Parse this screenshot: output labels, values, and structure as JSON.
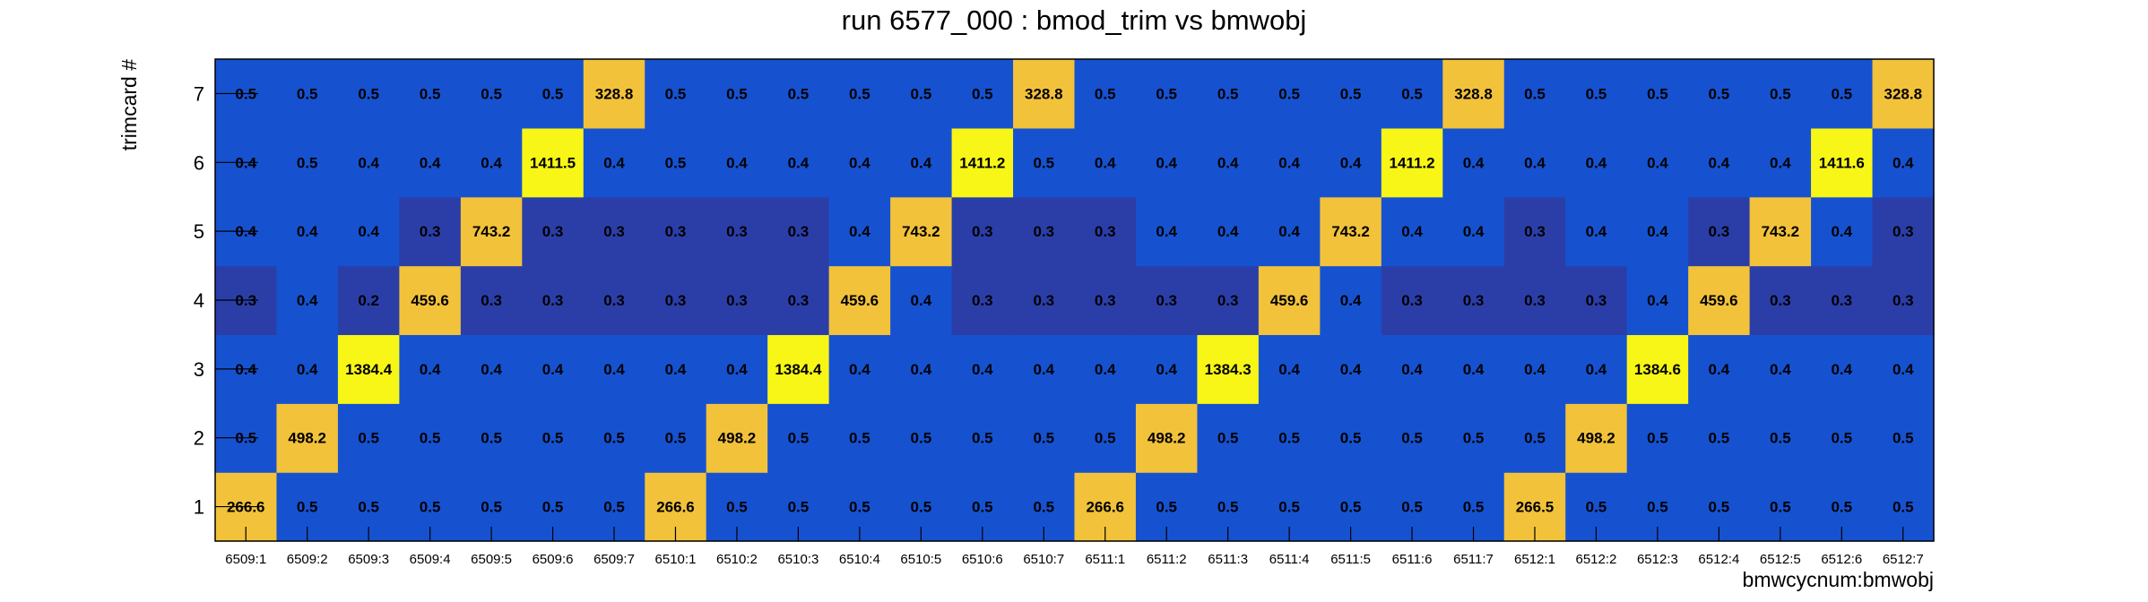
{
  "chart_data": {
    "type": "heatmap",
    "title": "run 6577_000 : bmod_trim vs bmwobj",
    "xlabel": "bmwcycnum:bmwobj",
    "ylabel": "trimcard #",
    "x_categories": [
      "6509:1",
      "6509:2",
      "6509:3",
      "6509:4",
      "6509:5",
      "6509:6",
      "6509:7",
      "6510:1",
      "6510:2",
      "6510:3",
      "6510:4",
      "6510:5",
      "6510:6",
      "6510:7",
      "6511:1",
      "6511:2",
      "6511:3",
      "6511:4",
      "6511:5",
      "6511:6",
      "6511:7",
      "6512:1",
      "6512:2",
      "6512:3",
      "6512:4",
      "6512:5",
      "6512:6",
      "6512:7"
    ],
    "y_categories": [
      "1",
      "2",
      "3",
      "4",
      "5",
      "6",
      "7"
    ],
    "values": [
      [
        "266.6",
        "0.5",
        "0.5",
        "0.5",
        "0.5",
        "0.5",
        "0.5",
        "266.6",
        "0.5",
        "0.5",
        "0.5",
        "0.5",
        "0.5",
        "0.5",
        "266.6",
        "0.5",
        "0.5",
        "0.5",
        "0.5",
        "0.5",
        "0.5",
        "266.5",
        "0.5",
        "0.5",
        "0.5",
        "0.5",
        "0.5",
        "0.5"
      ],
      [
        "0.5",
        "498.2",
        "0.5",
        "0.5",
        "0.5",
        "0.5",
        "0.5",
        "0.5",
        "498.2",
        "0.5",
        "0.5",
        "0.5",
        "0.5",
        "0.5",
        "0.5",
        "498.2",
        "0.5",
        "0.5",
        "0.5",
        "0.5",
        "0.5",
        "0.5",
        "498.2",
        "0.5",
        "0.5",
        "0.5",
        "0.5",
        "0.5"
      ],
      [
        "0.4",
        "0.4",
        "1384.4",
        "0.4",
        "0.4",
        "0.4",
        "0.4",
        "0.4",
        "0.4",
        "1384.4",
        "0.4",
        "0.4",
        "0.4",
        "0.4",
        "0.4",
        "0.4",
        "1384.3",
        "0.4",
        "0.4",
        "0.4",
        "0.4",
        "0.4",
        "0.4",
        "1384.6",
        "0.4",
        "0.4",
        "0.4",
        "0.4"
      ],
      [
        "0.3",
        "0.4",
        "0.2",
        "459.6",
        "0.3",
        "0.3",
        "0.3",
        "0.3",
        "0.3",
        "0.3",
        "459.6",
        "0.4",
        "0.3",
        "0.3",
        "0.3",
        "0.3",
        "0.3",
        "459.6",
        "0.4",
        "0.3",
        "0.3",
        "0.3",
        "0.3",
        "0.4",
        "459.6",
        "0.3",
        "0.3",
        "0.3"
      ],
      [
        "0.4",
        "0.4",
        "0.4",
        "0.3",
        "743.2",
        "0.3",
        "0.3",
        "0.3",
        "0.3",
        "0.3",
        "0.4",
        "743.2",
        "0.3",
        "0.3",
        "0.3",
        "0.4",
        "0.4",
        "0.4",
        "743.2",
        "0.4",
        "0.4",
        "0.3",
        "0.4",
        "0.4",
        "0.3",
        "743.2",
        "0.4",
        "0.3"
      ],
      [
        "0.4",
        "0.5",
        "0.4",
        "0.4",
        "0.4",
        "1411.5",
        "0.4",
        "0.5",
        "0.4",
        "0.4",
        "0.4",
        "0.4",
        "1411.2",
        "0.5",
        "0.4",
        "0.4",
        "0.4",
        "0.4",
        "0.4",
        "1411.2",
        "0.4",
        "0.4",
        "0.4",
        "0.4",
        "0.4",
        "0.4",
        "1411.6",
        "0.4"
      ],
      [
        "0.5",
        "0.5",
        "0.5",
        "0.5",
        "0.5",
        "0.5",
        "328.8",
        "0.5",
        "0.5",
        "0.5",
        "0.5",
        "0.5",
        "0.5",
        "328.8",
        "0.5",
        "0.5",
        "0.5",
        "0.5",
        "0.5",
        "0.5",
        "328.8",
        "0.5",
        "0.5",
        "0.5",
        "0.5",
        "0.5",
        "0.5",
        "328.8"
      ]
    ],
    "value_format": "cell text as printed",
    "colors": {
      "dark_blue": "#2b3ea8",
      "mid_blue": "#1652d0",
      "orange": "#f2c23a",
      "yellow": "#f7f617"
    },
    "grid": false,
    "legend": "none"
  }
}
